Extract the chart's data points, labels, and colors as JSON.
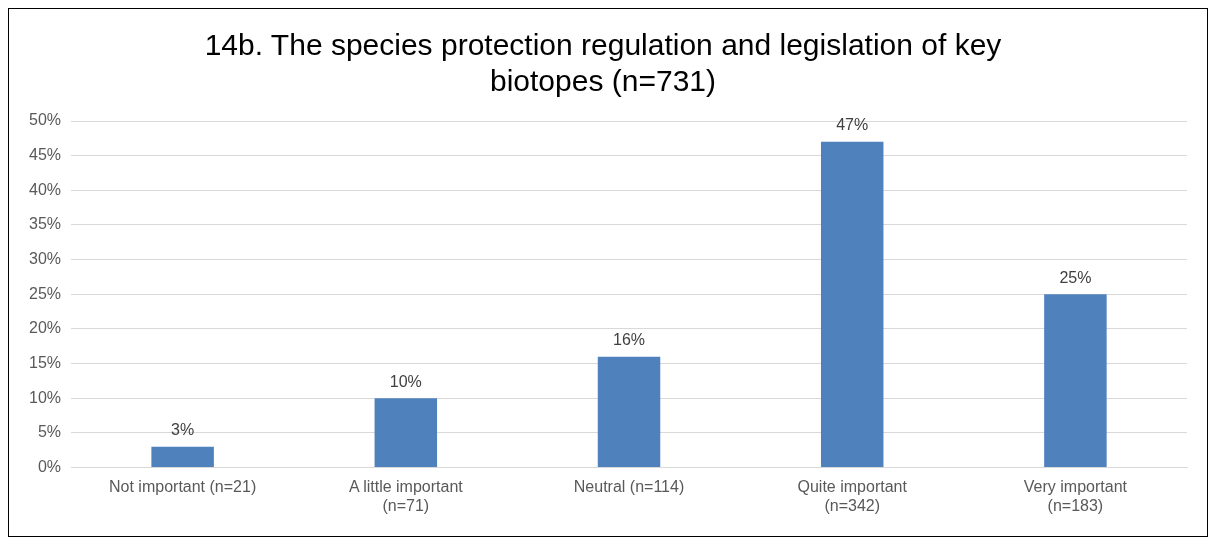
{
  "chart_data": {
    "type": "bar",
    "title": "14b. The species protection regulation and legislation of key biotopes (n=731)",
    "categories": [
      "Not important (n=21)",
      "A little important (n=71)",
      "Neutral (n=114)",
      "Quite important (n=342)",
      "Very important (n=183)"
    ],
    "values": [
      3,
      10,
      16,
      47,
      25
    ],
    "value_labels": [
      "3%",
      "10%",
      "16%",
      "47%",
      "25%"
    ],
    "color": "#4f81bd",
    "ylim": [
      0,
      50
    ],
    "yticks": [
      {
        "value": 0,
        "label": "0%"
      },
      {
        "value": 5,
        "label": "5%"
      },
      {
        "value": 10,
        "label": "10%"
      },
      {
        "value": 15,
        "label": "15%"
      },
      {
        "value": 20,
        "label": "20%"
      },
      {
        "value": 25,
        "label": "25%"
      },
      {
        "value": 30,
        "label": "30%"
      },
      {
        "value": 35,
        "label": "35%"
      },
      {
        "value": 40,
        "label": "40%"
      },
      {
        "value": 45,
        "label": "45%"
      },
      {
        "value": 50,
        "label": "50%"
      }
    ],
    "grid": "y"
  }
}
